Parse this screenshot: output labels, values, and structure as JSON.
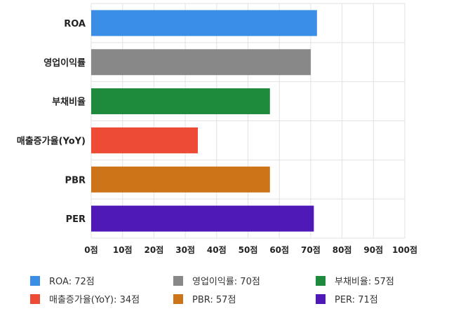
{
  "chart_data": {
    "type": "bar",
    "orientation": "horizontal",
    "categories": [
      "ROA",
      "영업이익률",
      "부채비율",
      "매출증가율(YoY)",
      "PBR",
      "PER"
    ],
    "values": [
      72,
      70,
      57,
      34,
      57,
      71
    ],
    "colors": [
      "#3a8ee6",
      "#888888",
      "#1e8a3c",
      "#ee4b37",
      "#cc7417",
      "#4f19b8"
    ],
    "xlim": [
      0,
      100
    ],
    "x_ticks": [
      0,
      10,
      20,
      30,
      40,
      50,
      60,
      70,
      80,
      90,
      100
    ],
    "x_tick_labels": [
      "0점",
      "10점",
      "20점",
      "30점",
      "40점",
      "50점",
      "60점",
      "70점",
      "80점",
      "90점",
      "100점"
    ],
    "legend": [
      {
        "label": "ROA: 72점",
        "color": "#3a8ee6"
      },
      {
        "label": "영업이익률: 70점",
        "color": "#888888"
      },
      {
        "label": "부채비율: 57점",
        "color": "#1e8a3c"
      },
      {
        "label": "매출증가율(YoY): 34점",
        "color": "#ee4b37"
      },
      {
        "label": "PBR: 57점",
        "color": "#cc7417"
      },
      {
        "label": "PER: 71점",
        "color": "#4f19b8"
      }
    ],
    "legend_position": "bottom",
    "grid": true
  }
}
